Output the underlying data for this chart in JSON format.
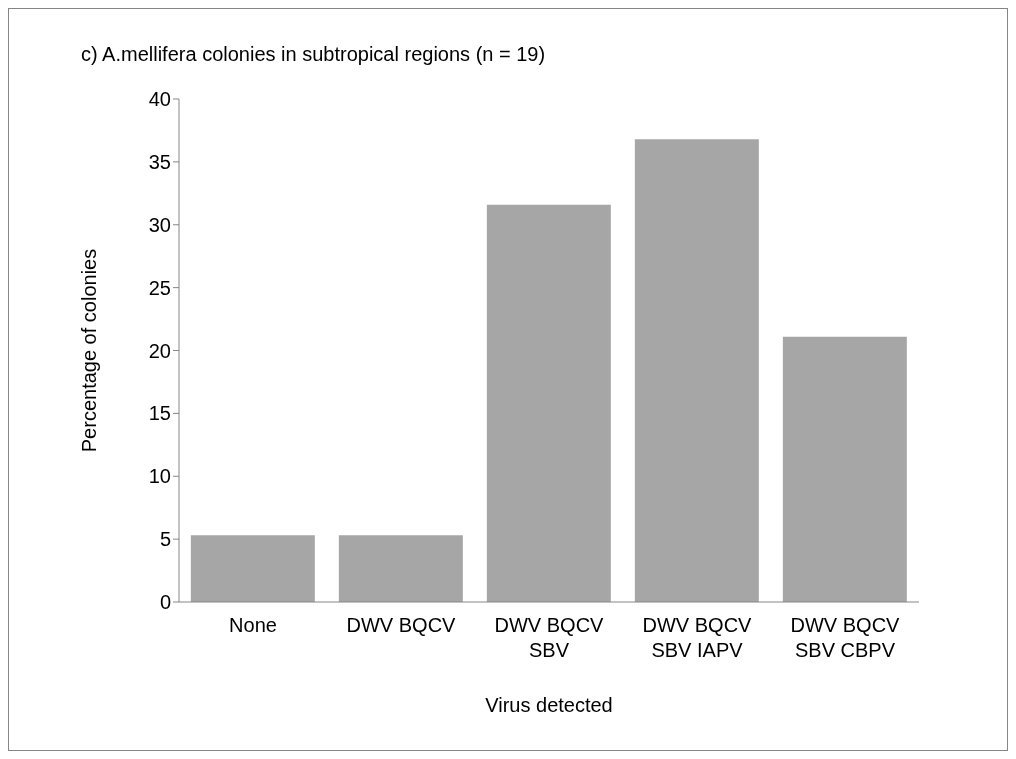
{
  "chart_data": {
    "type": "bar",
    "title": "c) A.mellifera colonies in subtropical regions (n = 19)",
    "xlabel": "Virus detected",
    "ylabel": "Percentage of colonies",
    "categories": [
      "None",
      "DWV BQCV",
      "DWV BQCV SBV",
      "DWV BQCV SBV IAPV",
      "DWV BQCV SBV CBPV"
    ],
    "values": [
      5.3,
      5.3,
      31.6,
      36.8,
      21.1
    ],
    "color": "#a6a6a6",
    "ylim": [
      0,
      40
    ],
    "yticks": [
      0,
      5,
      10,
      15,
      20,
      25,
      30,
      35,
      40
    ],
    "grid": false,
    "legend": false
  }
}
